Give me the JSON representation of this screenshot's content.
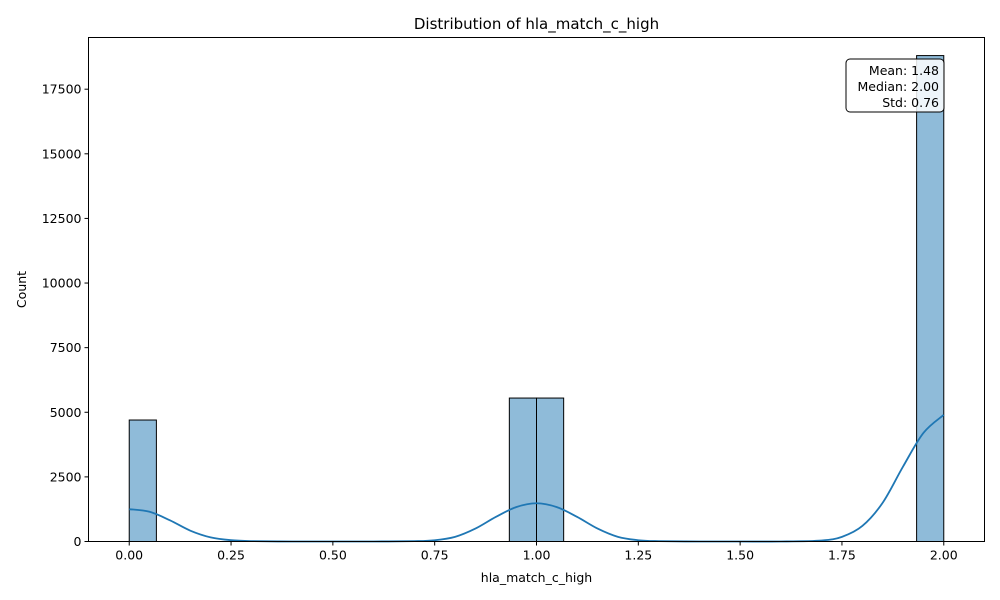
{
  "chart_data": {
    "type": "bar",
    "title": "Distribution of hla_match_c_high",
    "xlabel": "hla_match_c_high",
    "ylabel": "Count",
    "xlim": [
      -0.1,
      2.1
    ],
    "ylim": [
      0,
      19500
    ],
    "x_ticks": [
      0.0,
      0.25,
      0.5,
      0.75,
      1.0,
      1.25,
      1.5,
      1.75,
      2.0
    ],
    "x_tick_labels": [
      "0.00",
      "0.25",
      "0.50",
      "0.75",
      "1.00",
      "1.25",
      "1.50",
      "1.75",
      "2.00"
    ],
    "y_ticks": [
      0,
      2500,
      5000,
      7500,
      10000,
      12500,
      15000,
      17500
    ],
    "y_tick_labels": [
      "0",
      "2500",
      "5000",
      "7500",
      "10000",
      "12500",
      "15000",
      "17500"
    ],
    "bins": [
      {
        "x0": 0.0,
        "x1": 0.0667,
        "count": 4700
      },
      {
        "x0": 0.9333,
        "x1": 1.0,
        "count": 5550
      },
      {
        "x0": 1.0,
        "x1": 1.0667,
        "count": 5550
      },
      {
        "x0": 1.9333,
        "x1": 2.0,
        "count": 18800
      }
    ],
    "kde": {
      "x": [
        0.0,
        0.05,
        0.1,
        0.15,
        0.2,
        0.25,
        0.3,
        0.4,
        0.5,
        0.6,
        0.7,
        0.75,
        0.8,
        0.85,
        0.9,
        0.95,
        1.0,
        1.05,
        1.1,
        1.15,
        1.2,
        1.25,
        1.3,
        1.4,
        1.5,
        1.6,
        1.7,
        1.75,
        1.8,
        1.85,
        1.9,
        1.95,
        2.0
      ],
      "y": [
        1250,
        1150,
        820,
        420,
        160,
        50,
        15,
        0,
        0,
        0,
        15,
        50,
        180,
        500,
        950,
        1330,
        1480,
        1330,
        950,
        500,
        180,
        50,
        15,
        0,
        0,
        0,
        40,
        180,
        600,
        1500,
        2900,
        4200,
        4900
      ]
    },
    "bar_color": "#1f77b4",
    "bar_alpha": 0.5,
    "kde_color": "#1f77b4",
    "grid": false,
    "stats_box": {
      "lines": [
        "Mean: 1.48",
        "Median: 2.00",
        "Std: 0.76"
      ],
      "position": "top-right"
    }
  }
}
